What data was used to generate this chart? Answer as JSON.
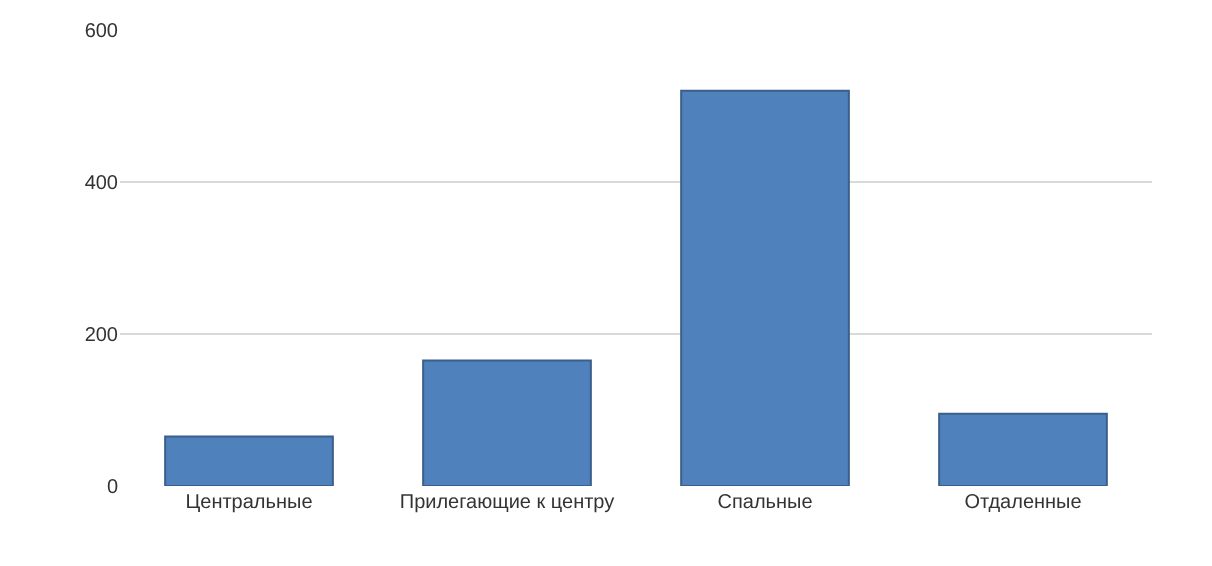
{
  "chart_data": {
    "type": "bar",
    "categories": [
      "Центральные",
      "Прилегающие к центру",
      "Спальные",
      "Отдаленные"
    ],
    "values": [
      65,
      165,
      520,
      95
    ],
    "color": "#4f81bd",
    "ylim": [
      0,
      600
    ],
    "yticks": [
      0,
      200,
      400,
      600
    ],
    "grid": "y",
    "legend": false
  }
}
